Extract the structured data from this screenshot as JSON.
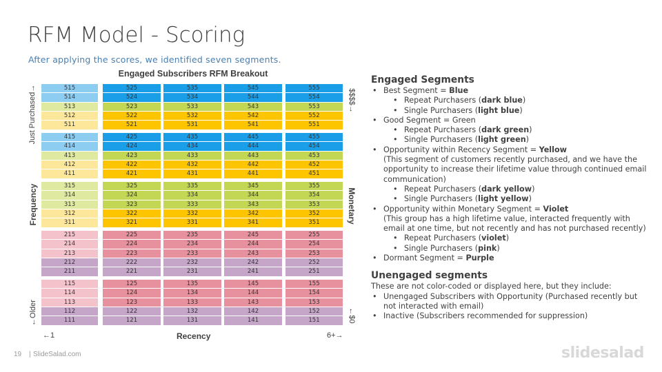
{
  "title": "RFM Model - Scoring",
  "subtitle": "After applying the scores, we identified  seven segments.",
  "chart_data": {
    "type": "table",
    "title": "Engaged Subscribers RFM Breakout",
    "xlabel": "Recency",
    "ylabel": "Frequency",
    "y2label": "Monetary",
    "x_left_note": "←1",
    "x_right_note": "6+→",
    "y_top_note": "Just Purchased→",
    "y_bottom_note": "←Older",
    "y2_top_note": "$$$$→",
    "y2_bottom_note": "←$0",
    "colors": {
      "dark_blue": "#1a9ee8",
      "light_blue": "#8dcdf2",
      "dark_green": "#c3d755",
      "light_green": "#dfe9a0",
      "dark_yellow": "#fdc500",
      "light_yellow": "#fde79b",
      "violet": "#c5a6c9",
      "pink": "#f4c2cb",
      "purple": "#e8919e"
    },
    "bands": [
      {
        "rows": [
          {
            "cells": [
              "515",
              "525",
              "535",
              "545",
              "555"
            ],
            "colors": [
              "light_blue",
              "dark_blue",
              "dark_blue",
              "dark_blue",
              "dark_blue"
            ]
          },
          {
            "cells": [
              "514",
              "524",
              "534",
              "544",
              "554"
            ],
            "colors": [
              "light_blue",
              "dark_blue",
              "dark_blue",
              "dark_blue",
              "dark_blue"
            ]
          },
          {
            "cells": [
              "513",
              "523",
              "533",
              "543",
              "553"
            ],
            "colors": [
              "light_green",
              "dark_green",
              "dark_green",
              "dark_green",
              "dark_green"
            ]
          },
          {
            "cells": [
              "512",
              "522",
              "532",
              "542",
              "552"
            ],
            "colors": [
              "light_yellow",
              "dark_yellow",
              "dark_yellow",
              "dark_yellow",
              "dark_yellow"
            ]
          },
          {
            "cells": [
              "511",
              "521",
              "531",
              "541",
              "551"
            ],
            "colors": [
              "light_yellow",
              "dark_yellow",
              "dark_yellow",
              "dark_yellow",
              "dark_yellow"
            ]
          }
        ]
      },
      {
        "rows": [
          {
            "cells": [
              "415",
              "425",
              "435",
              "445",
              "455"
            ],
            "colors": [
              "light_blue",
              "dark_blue",
              "dark_blue",
              "dark_blue",
              "dark_blue"
            ]
          },
          {
            "cells": [
              "414",
              "424",
              "434",
              "444",
              "454"
            ],
            "colors": [
              "light_blue",
              "dark_blue",
              "dark_blue",
              "dark_blue",
              "dark_blue"
            ]
          },
          {
            "cells": [
              "413",
              "423",
              "433",
              "443",
              "453"
            ],
            "colors": [
              "light_green",
              "dark_green",
              "dark_green",
              "dark_green",
              "dark_green"
            ]
          },
          {
            "cells": [
              "412",
              "422",
              "432",
              "442",
              "452"
            ],
            "colors": [
              "light_yellow",
              "dark_yellow",
              "dark_yellow",
              "dark_yellow",
              "dark_yellow"
            ]
          },
          {
            "cells": [
              "411",
              "421",
              "431",
              "441",
              "451"
            ],
            "colors": [
              "light_yellow",
              "dark_yellow",
              "dark_yellow",
              "dark_yellow",
              "dark_yellow"
            ]
          }
        ]
      },
      {
        "rows": [
          {
            "cells": [
              "315",
              "325",
              "335",
              "345",
              "355"
            ],
            "colors": [
              "light_green",
              "dark_green",
              "dark_green",
              "dark_green",
              "dark_green"
            ]
          },
          {
            "cells": [
              "314",
              "324",
              "334",
              "344",
              "354"
            ],
            "colors": [
              "light_green",
              "dark_green",
              "dark_green",
              "dark_green",
              "dark_green"
            ]
          },
          {
            "cells": [
              "313",
              "323",
              "333",
              "343",
              "353"
            ],
            "colors": [
              "light_green",
              "dark_green",
              "dark_green",
              "dark_green",
              "dark_green"
            ]
          },
          {
            "cells": [
              "312",
              "322",
              "332",
              "342",
              "352"
            ],
            "colors": [
              "light_yellow",
              "dark_yellow",
              "dark_yellow",
              "dark_yellow",
              "dark_yellow"
            ]
          },
          {
            "cells": [
              "311",
              "321",
              "331",
              "341",
              "351"
            ],
            "colors": [
              "light_yellow",
              "dark_yellow",
              "dark_yellow",
              "dark_yellow",
              "dark_yellow"
            ]
          }
        ]
      },
      {
        "rows": [
          {
            "cells": [
              "215",
              "225",
              "235",
              "245",
              "255"
            ],
            "colors": [
              "pink",
              "purple",
              "purple",
              "purple",
              "purple"
            ]
          },
          {
            "cells": [
              "214",
              "224",
              "234",
              "244",
              "254"
            ],
            "colors": [
              "pink",
              "purple",
              "purple",
              "purple",
              "purple"
            ]
          },
          {
            "cells": [
              "213",
              "223",
              "233",
              "243",
              "253"
            ],
            "colors": [
              "pink",
              "purple",
              "purple",
              "purple",
              "purple"
            ]
          },
          {
            "cells": [
              "212",
              "222",
              "232",
              "242",
              "252"
            ],
            "colors": [
              "violet",
              "violet",
              "violet",
              "violet",
              "violet"
            ]
          },
          {
            "cells": [
              "211",
              "221",
              "231",
              "241",
              "251"
            ],
            "colors": [
              "violet",
              "violet",
              "violet",
              "violet",
              "violet"
            ]
          }
        ]
      },
      {
        "rows": [
          {
            "cells": [
              "115",
              "125",
              "135",
              "145",
              "155"
            ],
            "colors": [
              "pink",
              "purple",
              "purple",
              "purple",
              "purple"
            ]
          },
          {
            "cells": [
              "114",
              "124",
              "134",
              "144",
              "154"
            ],
            "colors": [
              "pink",
              "purple",
              "purple",
              "purple",
              "purple"
            ]
          },
          {
            "cells": [
              "113",
              "123",
              "133",
              "143",
              "153"
            ],
            "colors": [
              "pink",
              "purple",
              "purple",
              "purple",
              "purple"
            ]
          },
          {
            "cells": [
              "112",
              "122",
              "132",
              "142",
              "152"
            ],
            "colors": [
              "violet",
              "violet",
              "violet",
              "violet",
              "violet"
            ]
          },
          {
            "cells": [
              "111",
              "121",
              "131",
              "141",
              "151"
            ],
            "colors": [
              "violet",
              "violet",
              "violet",
              "violet",
              "violet"
            ]
          }
        ]
      }
    ]
  },
  "engaged": {
    "heading": "Engaged Segments",
    "best_pre": "Best Segment  = ",
    "best_bold": "Blue",
    "best_repeat_pre": "Repeat Purchasers (",
    "best_repeat_bold": "dark blue",
    "best_single_pre": "Single Purchasers (",
    "best_single_bold": "light blue",
    "close": ")",
    "good": "Good Segment = Green",
    "good_repeat_pre": "Repeat Purchasers (",
    "good_repeat_bold": "dark green",
    "good_single_pre": "Single Purchasers (",
    "good_single_bold": "light green",
    "opp_rec_pre": "Opportunity within Recency Segment = ",
    "opp_rec_bold": "Yellow",
    "opp_rec_para": "(This segment of customers recently purchased, and we have the opportunity to increase their lifetime value through continued email communication)",
    "rec_repeat_pre": "Repeat Purchasers (",
    "rec_repeat_bold": "dark yellow",
    "rec_single_pre": "Single Purchasers (",
    "rec_single_bold": "light yellow",
    "opp_mon_pre": "Opportunity within Monetary Segment  = ",
    "opp_mon_bold": "Violet",
    "opp_mon_para": "(This group has a high lifetime value, interacted frequently with email at one time,  but not recently and has not purchased recently)",
    "mon_repeat_pre": "Repeat Purchasers (",
    "mon_repeat_bold": "violet",
    "mon_single_pre": "Single Purchasers (",
    "mon_single_bold": "pink",
    "dormant_pre": "Dormant Segment = ",
    "dormant_bold": "Purple"
  },
  "unengaged": {
    "heading": "Unengaged segments",
    "intro": "These are not color-coded or displayed here, but they include:",
    "item1": "Unengaged Subscribers with Opportunity (Purchased recently but not interacted with email)",
    "item2": "Inactive (Subscribers recommended  for suppression)"
  },
  "footer": {
    "page_number": "19",
    "separator": "|",
    "brand": "SlideSalad.com",
    "logo": "slidesalad"
  }
}
